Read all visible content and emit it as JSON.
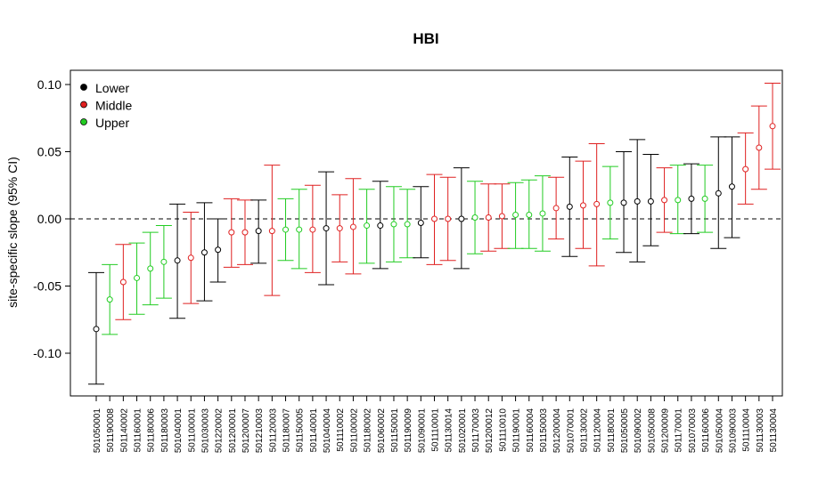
{
  "chart_data": {
    "type": "errorbar",
    "title": "HBI",
    "ylabel": "site-specific slope (95% CI)",
    "xlabel": "",
    "ylim": [
      -0.13,
      0.11
    ],
    "yticks": [
      -0.1,
      -0.05,
      0.0,
      0.05,
      0.1
    ],
    "ytick_labels": [
      "-0.10",
      "-0.05",
      "0.00",
      "0.05",
      "0.10"
    ],
    "reference_line": 0,
    "legend": {
      "placement": "top-left",
      "entries": [
        {
          "label": "Lower",
          "color": "#000000"
        },
        {
          "label": "Middle",
          "color": "#df2020"
        },
        {
          "label": "Upper",
          "color": "#22cc22"
        }
      ]
    },
    "group_colors": {
      "Lower": "#000000",
      "Middle": "#df2020",
      "Upper": "#22cc22"
    },
    "points": [
      {
        "site": "501050001",
        "group": "Lower",
        "est": -0.082,
        "lo": -0.123,
        "hi": -0.04
      },
      {
        "site": "501190008",
        "group": "Upper",
        "est": -0.06,
        "lo": -0.086,
        "hi": -0.034
      },
      {
        "site": "501140002",
        "group": "Middle",
        "est": -0.047,
        "lo": -0.075,
        "hi": -0.019
      },
      {
        "site": "501160001",
        "group": "Upper",
        "est": -0.044,
        "lo": -0.071,
        "hi": -0.018
      },
      {
        "site": "501180006",
        "group": "Upper",
        "est": -0.037,
        "lo": -0.064,
        "hi": -0.01
      },
      {
        "site": "501180003",
        "group": "Upper",
        "est": -0.032,
        "lo": -0.059,
        "hi": -0.005
      },
      {
        "site": "501040001",
        "group": "Lower",
        "est": -0.031,
        "lo": -0.074,
        "hi": 0.011
      },
      {
        "site": "501100001",
        "group": "Middle",
        "est": -0.029,
        "lo": -0.063,
        "hi": 0.005
      },
      {
        "site": "501030003",
        "group": "Lower",
        "est": -0.025,
        "lo": -0.061,
        "hi": 0.012
      },
      {
        "site": "501220002",
        "group": "Lower",
        "est": -0.023,
        "lo": -0.047,
        "hi": 0.0
      },
      {
        "site": "501200001",
        "group": "Middle",
        "est": -0.01,
        "lo": -0.036,
        "hi": 0.015
      },
      {
        "site": "501200007",
        "group": "Middle",
        "est": -0.01,
        "lo": -0.034,
        "hi": 0.014
      },
      {
        "site": "501210003",
        "group": "Lower",
        "est": -0.009,
        "lo": -0.033,
        "hi": 0.014
      },
      {
        "site": "501120003",
        "group": "Middle",
        "est": -0.009,
        "lo": -0.057,
        "hi": 0.04
      },
      {
        "site": "501180007",
        "group": "Upper",
        "est": -0.008,
        "lo": -0.031,
        "hi": 0.015
      },
      {
        "site": "501150005",
        "group": "Upper",
        "est": -0.008,
        "lo": -0.037,
        "hi": 0.022
      },
      {
        "site": "501140001",
        "group": "Middle",
        "est": -0.008,
        "lo": -0.04,
        "hi": 0.025
      },
      {
        "site": "501040004",
        "group": "Lower",
        "est": -0.007,
        "lo": -0.049,
        "hi": 0.035
      },
      {
        "site": "501110002",
        "group": "Middle",
        "est": -0.007,
        "lo": -0.032,
        "hi": 0.018
      },
      {
        "site": "501100002",
        "group": "Middle",
        "est": -0.006,
        "lo": -0.041,
        "hi": 0.03
      },
      {
        "site": "501180002",
        "group": "Upper",
        "est": -0.005,
        "lo": -0.033,
        "hi": 0.022
      },
      {
        "site": "501060002",
        "group": "Lower",
        "est": -0.005,
        "lo": -0.037,
        "hi": 0.028
      },
      {
        "site": "501150001",
        "group": "Upper",
        "est": -0.004,
        "lo": -0.032,
        "hi": 0.024
      },
      {
        "site": "501190009",
        "group": "Upper",
        "est": -0.004,
        "lo": -0.029,
        "hi": 0.022
      },
      {
        "site": "501090001",
        "group": "Lower",
        "est": -0.003,
        "lo": -0.029,
        "hi": 0.024
      },
      {
        "site": "501110001",
        "group": "Middle",
        "est": 0.0,
        "lo": -0.034,
        "hi": 0.033
      },
      {
        "site": "501130014",
        "group": "Middle",
        "est": 0.0,
        "lo": -0.031,
        "hi": 0.031
      },
      {
        "site": "501020001",
        "group": "Lower",
        "est": 0.0,
        "lo": -0.037,
        "hi": 0.038
      },
      {
        "site": "501170003",
        "group": "Upper",
        "est": 0.001,
        "lo": -0.026,
        "hi": 0.028
      },
      {
        "site": "501200012",
        "group": "Middle",
        "est": 0.001,
        "lo": -0.024,
        "hi": 0.026
      },
      {
        "site": "501110010",
        "group": "Middle",
        "est": 0.002,
        "lo": -0.022,
        "hi": 0.026
      },
      {
        "site": "501190001",
        "group": "Upper",
        "est": 0.003,
        "lo": -0.022,
        "hi": 0.027
      },
      {
        "site": "501160004",
        "group": "Upper",
        "est": 0.003,
        "lo": -0.022,
        "hi": 0.029
      },
      {
        "site": "501150003",
        "group": "Upper",
        "est": 0.004,
        "lo": -0.024,
        "hi": 0.032
      },
      {
        "site": "501200004",
        "group": "Middle",
        "est": 0.008,
        "lo": -0.015,
        "hi": 0.031
      },
      {
        "site": "501070001",
        "group": "Lower",
        "est": 0.009,
        "lo": -0.028,
        "hi": 0.046
      },
      {
        "site": "501130002",
        "group": "Middle",
        "est": 0.01,
        "lo": -0.022,
        "hi": 0.043
      },
      {
        "site": "501120004",
        "group": "Middle",
        "est": 0.011,
        "lo": -0.035,
        "hi": 0.056
      },
      {
        "site": "501180001",
        "group": "Upper",
        "est": 0.012,
        "lo": -0.015,
        "hi": 0.039
      },
      {
        "site": "501050005",
        "group": "Lower",
        "est": 0.012,
        "lo": -0.025,
        "hi": 0.05
      },
      {
        "site": "501090002",
        "group": "Lower",
        "est": 0.013,
        "lo": -0.032,
        "hi": 0.059
      },
      {
        "site": "501050008",
        "group": "Lower",
        "est": 0.013,
        "lo": -0.02,
        "hi": 0.048
      },
      {
        "site": "501200009",
        "group": "Middle",
        "est": 0.014,
        "lo": -0.01,
        "hi": 0.038
      },
      {
        "site": "501170001",
        "group": "Upper",
        "est": 0.014,
        "lo": -0.011,
        "hi": 0.04
      },
      {
        "site": "501070003",
        "group": "Lower",
        "est": 0.015,
        "lo": -0.011,
        "hi": 0.041
      },
      {
        "site": "501160006",
        "group": "Upper",
        "est": 0.015,
        "lo": -0.01,
        "hi": 0.04
      },
      {
        "site": "501050004",
        "group": "Lower",
        "est": 0.019,
        "lo": -0.022,
        "hi": 0.061
      },
      {
        "site": "501090003",
        "group": "Lower",
        "est": 0.024,
        "lo": -0.014,
        "hi": 0.061
      },
      {
        "site": "501110004",
        "group": "Middle",
        "est": 0.037,
        "lo": 0.011,
        "hi": 0.064
      },
      {
        "site": "501130003",
        "group": "Middle",
        "est": 0.053,
        "lo": 0.022,
        "hi": 0.084
      },
      {
        "site": "501130004",
        "group": "Middle",
        "est": 0.069,
        "lo": 0.037,
        "hi": 0.101
      }
    ]
  }
}
